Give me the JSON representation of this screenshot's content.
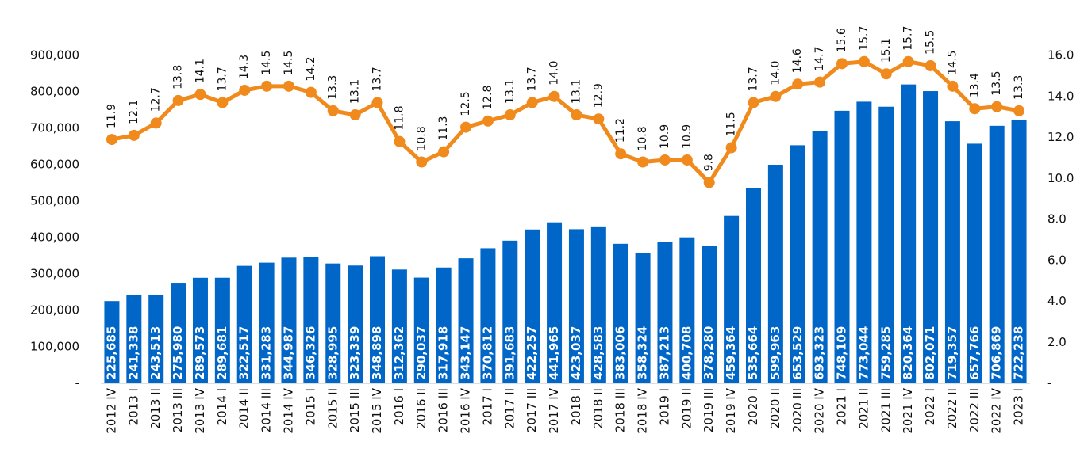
{
  "chart_data": {
    "type": "bar_line",
    "categories": [
      "2012 IV",
      "2013 I",
      "2013 II",
      "2013 III",
      "2013 IV",
      "2014 I",
      "2014 II",
      "2014 III",
      "2014 IV",
      "2015 I",
      "2015 II",
      "2015 III",
      "2015 IV",
      "2016 I",
      "2016 II",
      "2016 III",
      "2016 IV",
      "2017 I",
      "2017 II",
      "2017 III",
      "2017 IV",
      "2018 I",
      "2018 II",
      "2018 III",
      "2018 IV",
      "2019 I",
      "2019 II",
      "2019 III",
      "2019 IV",
      "2020 I",
      "2020 II",
      "2020 III",
      "2020 IV",
      "2021 I",
      "2021 II",
      "2021 III",
      "2021 IV",
      "2022 I",
      "2022 II",
      "2022 III",
      "2022 IV",
      "2023 I"
    ],
    "series": [
      {
        "color": "#0066c8",
        "values": [
          225685,
          241338,
          243513,
          275980,
          289573,
          289681,
          322517,
          331283,
          344987,
          346326,
          328995,
          323339,
          348898,
          312362,
          290037,
          317918,
          343147,
          370812,
          391683,
          422257,
          441965,
          423037,
          428583,
          383006,
          358324,
          387213,
          400708,
          378280,
          459364,
          535664,
          599963,
          653529,
          693323,
          748109,
          773044,
          759285,
          820364,
          802071,
          719357,
          657766,
          706869,
          722238
        ],
        "value_labels": [
          "225,685",
          "241,338",
          "243,513",
          "275,980",
          "289,573",
          "289,681",
          "322,517",
          "331,283",
          "344,987",
          "346,326",
          "328,995",
          "323,339",
          "348,898",
          "312,362",
          "290,037",
          "317,918",
          "343,147",
          "370,812",
          "391,683",
          "422,257",
          "441,965",
          "423,037",
          "428,583",
          "383,006",
          "358,324",
          "387,213",
          "400,708",
          "378,280",
          "459,364",
          "535,664",
          "599,963",
          "653,529",
          "693,323",
          "748,109",
          "773,044",
          "759,285",
          "820,364",
          "802,071",
          "719,357",
          "657,766",
          "706,869",
          "722,238"
        ]
      },
      {
        "color": "#f08a1c",
        "axis": "y2",
        "values": [
          11.9,
          12.1,
          12.7,
          13.8,
          14.1,
          13.7,
          14.3,
          14.5,
          14.5,
          14.2,
          13.3,
          13.1,
          13.7,
          11.8,
          10.8,
          11.3,
          12.5,
          12.8,
          13.1,
          13.7,
          14.0,
          13.1,
          12.9,
          11.2,
          10.8,
          10.9,
          10.9,
          9.8,
          11.5,
          13.7,
          14.0,
          14.6,
          14.7,
          15.6,
          15.7,
          15.1,
          15.7,
          15.5,
          14.5,
          13.4,
          13.5,
          13.3
        ],
        "value_labels": [
          "11.9",
          "12.1",
          "12.7",
          "13.8",
          "14.1",
          "13.7",
          "14.3",
          "14.5",
          "14.5",
          "14.2",
          "13.3",
          "13.1",
          "13.7",
          "11.8",
          "10.8",
          "11.3",
          "12.5",
          "12.8",
          "13.1",
          "13.7",
          "14.0",
          "13.1",
          "12.9",
          "11.2",
          "10.8",
          "10.9",
          "10.9",
          "9.8",
          "11.5",
          "13.7",
          "14.0",
          "14.6",
          "14.7",
          "15.6",
          "15.7",
          "15.1",
          "15.7",
          "15.5",
          "14.5",
          "13.4",
          "13.5",
          "13.3"
        ]
      }
    ],
    "ylim": [
      0,
      900000
    ],
    "yticks": [
      {
        "value": 0,
        "label": "-"
      },
      {
        "value": 100000,
        "label": "100,000"
      },
      {
        "value": 200000,
        "label": "200,000"
      },
      {
        "value": 300000,
        "label": "300,000"
      },
      {
        "value": 400000,
        "label": "400,000"
      },
      {
        "value": 500000,
        "label": "500,000"
      },
      {
        "value": 600000,
        "label": "600,000"
      },
      {
        "value": 700000,
        "label": "700,000"
      },
      {
        "value": 800000,
        "label": "800,000"
      },
      {
        "value": 900000,
        "label": "900,000"
      }
    ],
    "y2lim": [
      0,
      16
    ],
    "y2ticks": [
      {
        "value": 0,
        "label": "-"
      },
      {
        "value": 2,
        "label": "2.0"
      },
      {
        "value": 4,
        "label": "4.0"
      },
      {
        "value": 6,
        "label": "6.0"
      },
      {
        "value": 8,
        "label": "8.0"
      },
      {
        "value": 10,
        "label": "10.0"
      },
      {
        "value": 12,
        "label": "12.0"
      },
      {
        "value": 14,
        "label": "14.0"
      },
      {
        "value": 16,
        "label": "16.0"
      }
    ]
  }
}
